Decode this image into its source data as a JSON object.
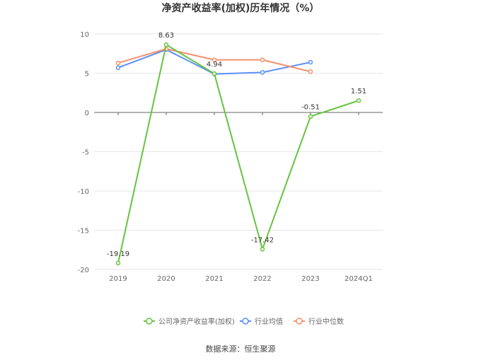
{
  "chart_data": {
    "type": "line",
    "title": "净资产收益率(加权)历年情况（%）",
    "categories": [
      "2019",
      "2020",
      "2021",
      "2022",
      "2023",
      "2024Q1"
    ],
    "yticks": [
      "10",
      "5",
      "0",
      "-5",
      "-10",
      "-15",
      "-20"
    ],
    "ylim": [
      -20,
      10
    ],
    "grid": true,
    "legend_position": "bottom",
    "series": [
      {
        "name": "公司净资产收益率(加权)",
        "color": "#66c43f",
        "values": [
          -19.19,
          8.63,
          4.94,
          -17.42,
          -0.51,
          1.51
        ],
        "labels": [
          "-19.19",
          "8.63",
          "4.94",
          "-17.42",
          "-0.51",
          "1.51"
        ]
      },
      {
        "name": "行业均值",
        "color": "#5b8ff9",
        "values": [
          5.7,
          8.0,
          4.9,
          5.1,
          6.4,
          null
        ]
      },
      {
        "name": "行业中位数",
        "color": "#f6906c",
        "values": [
          6.3,
          8.1,
          6.7,
          6.7,
          5.2,
          null
        ]
      }
    ]
  },
  "source": "数据来源：恒生聚源"
}
